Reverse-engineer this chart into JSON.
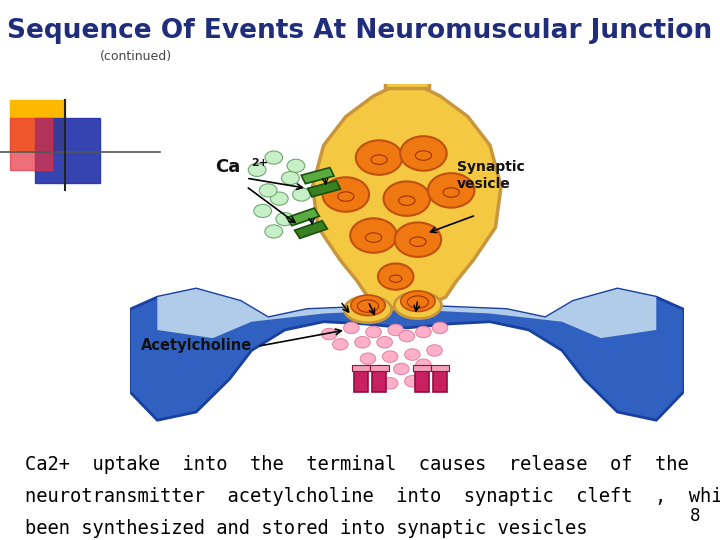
{
  "title": "Sequence Of Events At Neuromuscular Junction",
  "subtitle": "(continued)",
  "body_text_line1": "Ca2+  uptake  into  the  terminal  causes  release  of  the",
  "body_text_line2": "neurotransmitter  acetylcholine  into  synaptic  cleft  ,  which  has",
  "body_text_line3": "been synthesized and stored into synaptic vesicles",
  "page_number": "8",
  "bg_color": "#ffffff",
  "title_color": "#1F2D7B",
  "subtitle_color": "#444444",
  "body_color": "#000000",
  "title_fontsize": 19,
  "subtitle_fontsize": 9,
  "body_fontsize": 13.5,
  "page_num_fontsize": 12,
  "nerve_body_color": "#F5C842",
  "nerve_edge_color": "#C8963C",
  "nerve_neck_color": "#F5C842",
  "muscle_outer_color": "#2060B8",
  "muscle_inner_color": "#A8C8E8",
  "vesicle_fill": "#F07810",
  "vesicle_edge": "#C05010",
  "channel_color": "#3A8C2C",
  "ca_dot_color": "#C8F0C8",
  "ca_dot_edge": "#70A870",
  "ach_dot_color": "#FFB0C8",
  "ach_dot_edge": "#E080A0",
  "receptor_color": "#C82060",
  "receptor_edge": "#901040",
  "receptor_pink": "#F0A0B8"
}
